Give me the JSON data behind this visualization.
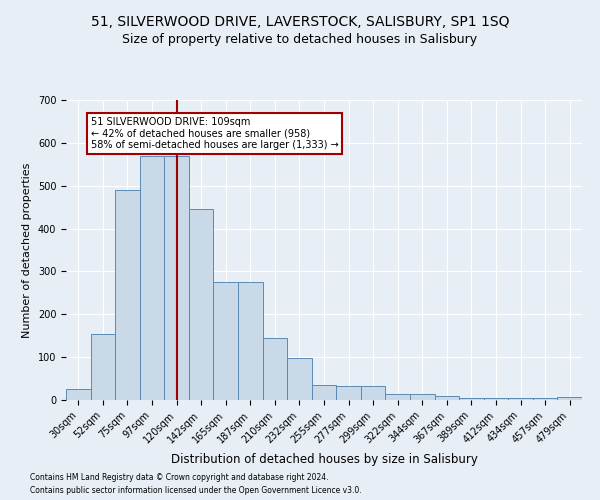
{
  "title1": "51, SILVERWOOD DRIVE, LAVERSTOCK, SALISBURY, SP1 1SQ",
  "title2": "Size of property relative to detached houses in Salisbury",
  "xlabel": "Distribution of detached houses by size in Salisbury",
  "ylabel": "Number of detached properties",
  "footer1": "Contains HM Land Registry data © Crown copyright and database right 2024.",
  "footer2": "Contains public sector information licensed under the Open Government Licence v3.0.",
  "categories": [
    "30sqm",
    "52sqm",
    "75sqm",
    "97sqm",
    "120sqm",
    "142sqm",
    "165sqm",
    "187sqm",
    "210sqm",
    "232sqm",
    "255sqm",
    "277sqm",
    "299sqm",
    "322sqm",
    "344sqm",
    "367sqm",
    "389sqm",
    "412sqm",
    "434sqm",
    "457sqm",
    "479sqm"
  ],
  "values": [
    25,
    155,
    490,
    570,
    570,
    445,
    275,
    275,
    145,
    98,
    35,
    32,
    32,
    15,
    15,
    10,
    5,
    5,
    5,
    5,
    8
  ],
  "bar_color": "#c9d9e8",
  "bar_edge_color": "#5a8ab5",
  "vline_x": 4.0,
  "vline_color": "#a00000",
  "annotation_text": "51 SILVERWOOD DRIVE: 109sqm\n← 42% of detached houses are smaller (958)\n58% of semi-detached houses are larger (1,333) →",
  "annotation_box_color": "#ffffff",
  "annotation_box_edge": "#a00000",
  "ylim": [
    0,
    700
  ],
  "yticks": [
    0,
    100,
    200,
    300,
    400,
    500,
    600,
    700
  ],
  "background_color": "#e8eef5",
  "plot_background": "#e8eef5",
  "grid_color": "#ffffff",
  "title_fontsize": 10,
  "subtitle_fontsize": 9,
  "xlabel_fontsize": 8.5,
  "ylabel_fontsize": 8,
  "tick_fontsize": 7,
  "annot_fontsize": 7,
  "footer_fontsize": 5.5
}
